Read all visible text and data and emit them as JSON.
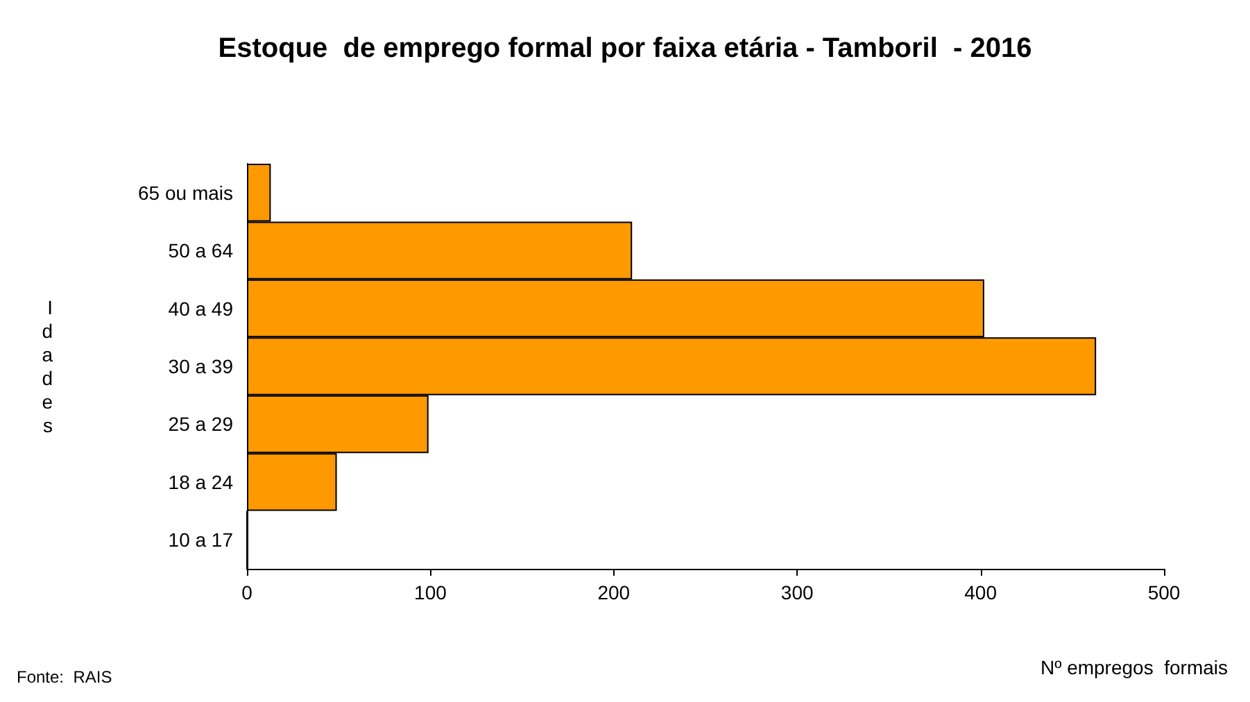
{
  "chart_data": {
    "type": "bar",
    "orientation": "horizontal",
    "title": "Estoque  de emprego formal por faixa etária - Tamboril  - 2016",
    "xlabel": "Nº empregos  formais",
    "ylabel": "Idades",
    "categories": [
      "65 ou mais",
      "50 a 64",
      "40 a 49",
      "30 a 39",
      "25 a 29",
      "18 a 24",
      "10 a 17"
    ],
    "values": [
      13,
      210,
      402,
      463,
      99,
      49,
      0
    ],
    "color": "#ff9900",
    "xlim": [
      0,
      500
    ],
    "xticks": [
      0,
      100,
      200,
      300,
      400,
      500
    ],
    "grid": false,
    "annotations": [
      "Fonte:  RAIS"
    ]
  }
}
